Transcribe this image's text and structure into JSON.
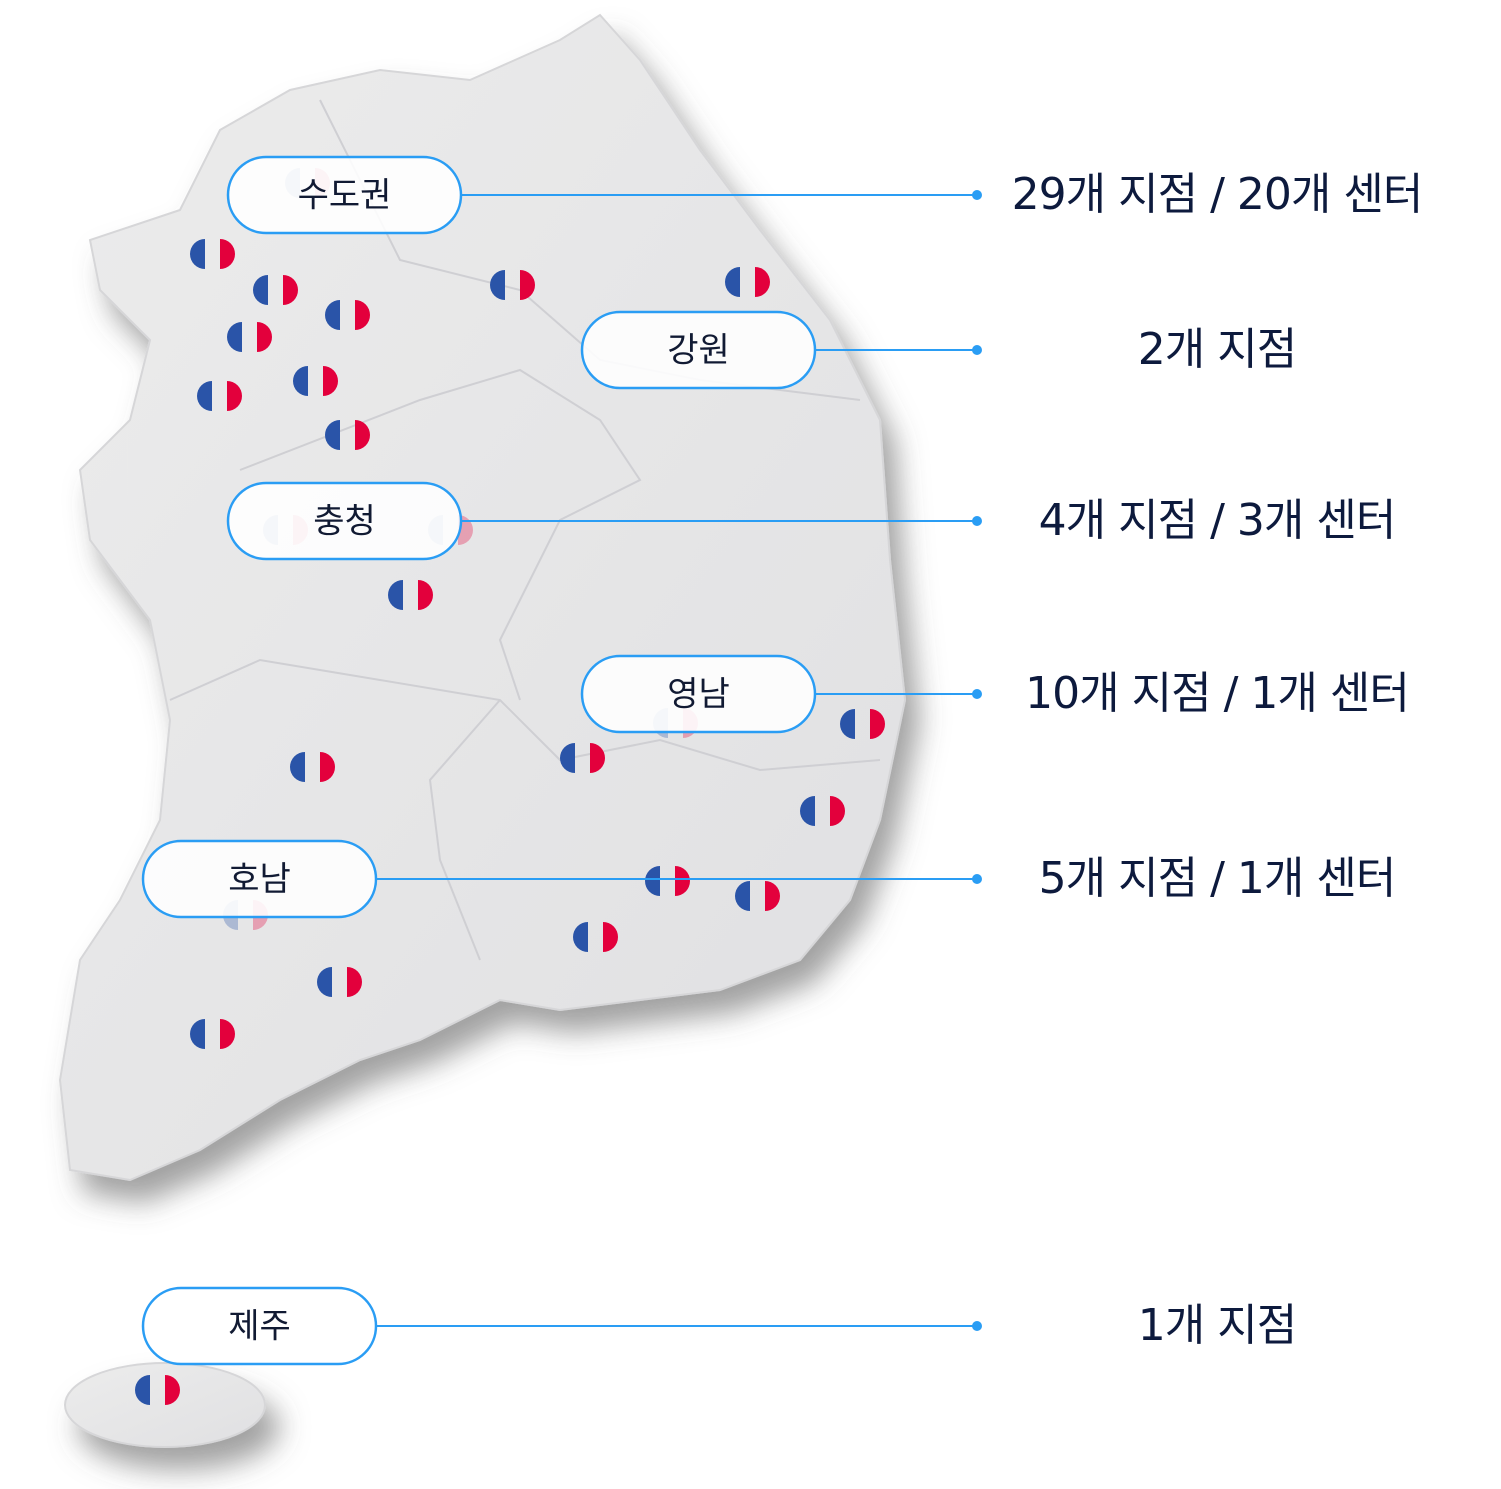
{
  "regions": [
    {
      "label": "수도권",
      "stats": "29개 지점  /  20개 센터"
    },
    {
      "label": "강원",
      "stats": "2개 지점"
    },
    {
      "label": "충청",
      "stats": "4개 지점  /  3개 센터"
    },
    {
      "label": "영남",
      "stats": "10개 지점  /  1개 센터"
    },
    {
      "label": "호남",
      "stats": "5개 지점  /  1개 센터"
    },
    {
      "label": "제주",
      "stats": "1개 지점"
    }
  ]
}
